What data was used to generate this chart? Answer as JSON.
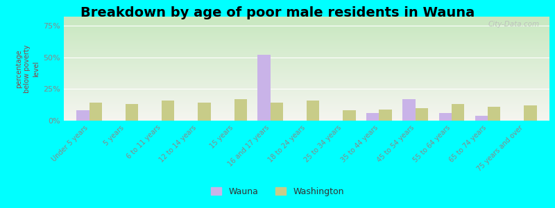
{
  "title": "Breakdown by age of poor male residents in Wauna",
  "categories": [
    "Under 5 years",
    "5 years",
    "6 to 11 years",
    "12 to 14 years",
    "15 years",
    "16 and 17 years",
    "18 to 24 years",
    "25 to 34 years",
    "35 to 44 years",
    "45 to 54 years",
    "55 to 64 years",
    "65 to 74 years",
    "75 years and over"
  ],
  "wauna_values": [
    8,
    0,
    0,
    0,
    0,
    52,
    0,
    0,
    6,
    17,
    6,
    4,
    0
  ],
  "washington_values": [
    14,
    13,
    16,
    14,
    17,
    14,
    16,
    8,
    9,
    10,
    13,
    11,
    12
  ],
  "wauna_color": "#c9b3e8",
  "washington_color": "#c8cc88",
  "ylabel": "percentage\nbelow poverty\nlevel",
  "yticks": [
    0,
    25,
    50,
    75
  ],
  "ytick_labels": [
    "0%",
    "25%",
    "50%",
    "75%"
  ],
  "ylim": [
    0,
    82
  ],
  "background_top": "#f5f5f0",
  "background_bottom": "#c8e8c0",
  "outer_background": "#00ffff",
  "title_fontsize": 14,
  "bar_width": 0.35,
  "watermark": "City-Data.com"
}
